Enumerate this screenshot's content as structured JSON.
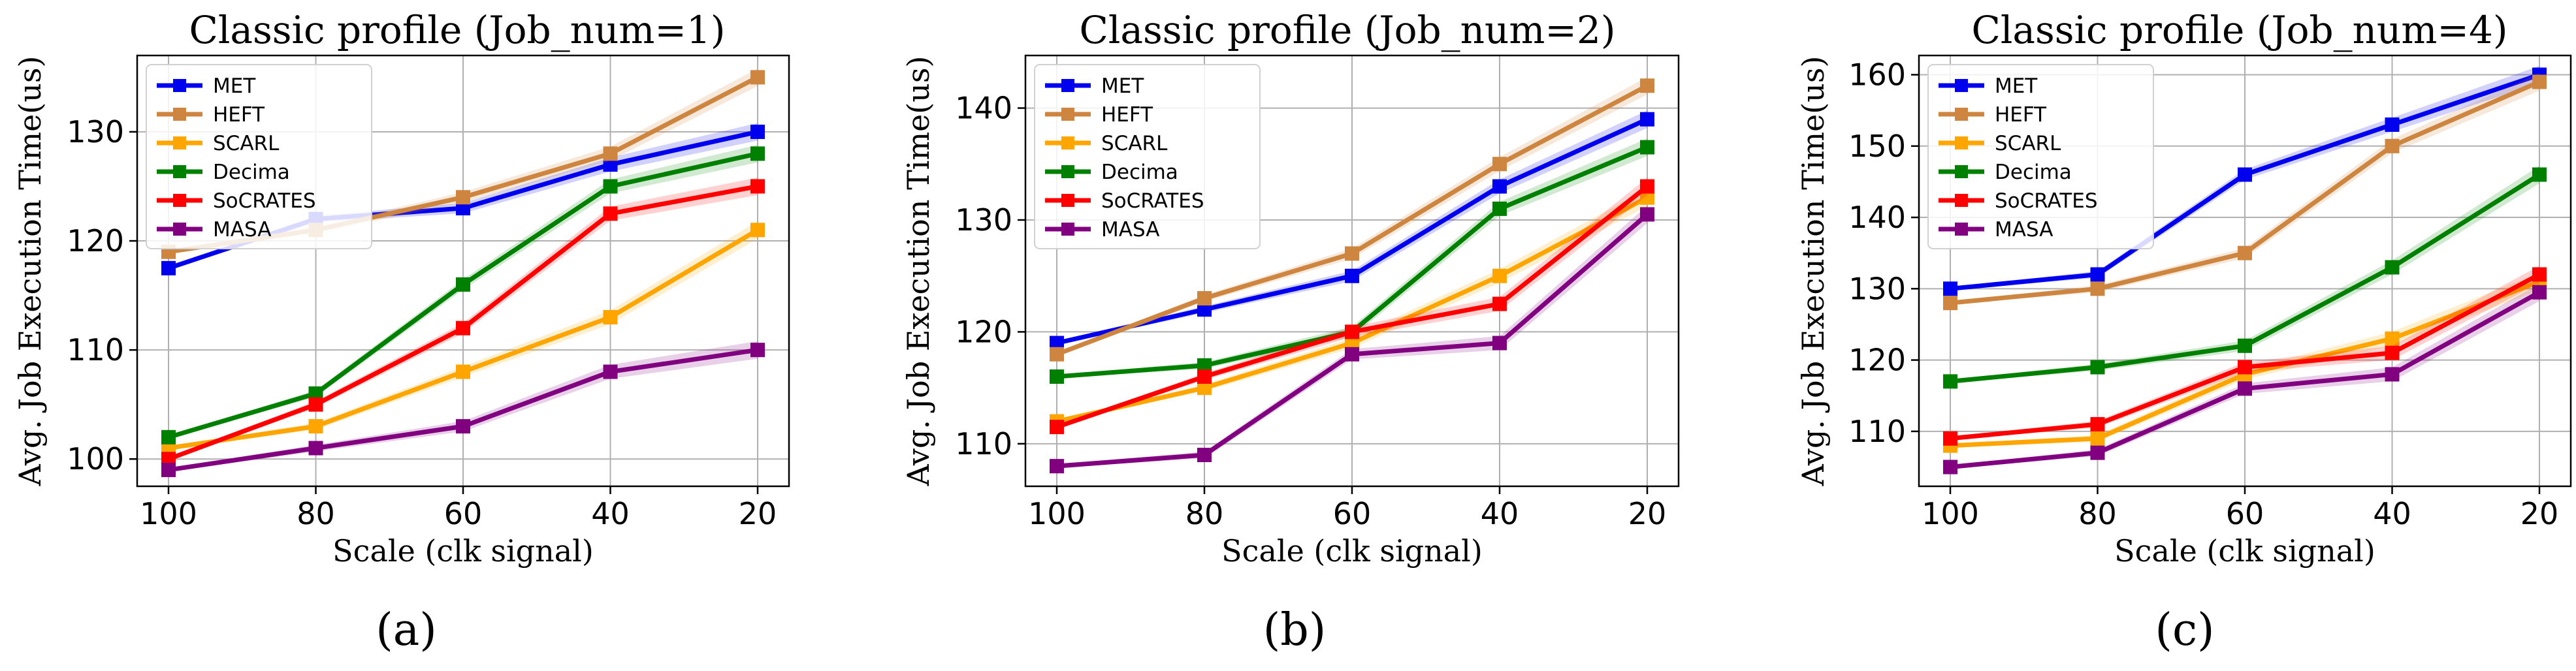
{
  "figure": {
    "panel_labels": [
      "(a)",
      "(b)",
      "(c)"
    ]
  },
  "chart_data": [
    {
      "type": "line",
      "title": "Classic profile (Job_num=1)",
      "xlabel": "Scale (clk signal)",
      "ylabel": "Avg. Job Execution Time(us)",
      "categories": [
        "100",
        "80",
        "60",
        "40",
        "20"
      ],
      "ylim": [
        97.5,
        137
      ],
      "yticks": [
        100,
        110,
        120,
        130
      ],
      "grid": true,
      "legend_position": "top-left",
      "series": [
        {
          "name": "MET",
          "color": "#0000ee",
          "values": [
            117.5,
            122,
            123,
            127,
            130
          ]
        },
        {
          "name": "HEFT",
          "color": "#cd853f",
          "values": [
            119,
            121,
            124,
            128,
            135
          ]
        },
        {
          "name": "SCARL",
          "color": "#ffa500",
          "values": [
            101,
            103,
            108,
            113,
            121
          ]
        },
        {
          "name": "Decima",
          "color": "#008000",
          "values": [
            102,
            106,
            116,
            125,
            128
          ]
        },
        {
          "name": "SoCRATES",
          "color": "#ff0000",
          "values": [
            100,
            105,
            112,
            122.5,
            125
          ]
        },
        {
          "name": "MASA",
          "color": "#800080",
          "values": [
            99,
            101,
            103,
            108,
            110
          ]
        }
      ]
    },
    {
      "type": "line",
      "title": "Classic profile (Job_num=2)",
      "xlabel": "Scale (clk signal)",
      "ylabel": "Avg. Job Execution Time(us)",
      "categories": [
        "100",
        "80",
        "60",
        "40",
        "20"
      ],
      "ylim": [
        106.2,
        144.7
      ],
      "yticks": [
        110,
        120,
        130,
        140
      ],
      "grid": true,
      "legend_position": "top-left",
      "series": [
        {
          "name": "MET",
          "color": "#0000ee",
          "values": [
            119,
            122,
            125,
            133,
            139
          ]
        },
        {
          "name": "HEFT",
          "color": "#cd853f",
          "values": [
            118,
            123,
            127,
            135,
            142
          ]
        },
        {
          "name": "SCARL",
          "color": "#ffa500",
          "values": [
            112,
            115,
            119,
            125,
            132
          ]
        },
        {
          "name": "Decima",
          "color": "#008000",
          "values": [
            116,
            117,
            120,
            131,
            136.5
          ]
        },
        {
          "name": "SoCRATES",
          "color": "#ff0000",
          "values": [
            111.5,
            116,
            120,
            122.5,
            133
          ]
        },
        {
          "name": "MASA",
          "color": "#800080",
          "values": [
            108,
            109,
            118,
            119,
            130.5
          ]
        }
      ]
    },
    {
      "type": "line",
      "title": "Classic profile (Job_num=4)",
      "xlabel": "Scale (clk signal)",
      "ylabel": "Avg. Job Execution Time(us)",
      "categories": [
        "100",
        "80",
        "60",
        "40",
        "20"
      ],
      "ylim": [
        102.3,
        162.7
      ],
      "yticks": [
        110,
        120,
        130,
        140,
        150,
        160
      ],
      "grid": true,
      "legend_position": "top-left",
      "series": [
        {
          "name": "MET",
          "color": "#0000ee",
          "values": [
            130,
            132,
            146,
            153,
            160
          ]
        },
        {
          "name": "HEFT",
          "color": "#cd853f",
          "values": [
            128,
            130,
            135,
            150,
            159
          ]
        },
        {
          "name": "SCARL",
          "color": "#ffa500",
          "values": [
            108,
            109,
            118,
            123,
            131
          ]
        },
        {
          "name": "Decima",
          "color": "#008000",
          "values": [
            117,
            119,
            122,
            133,
            146
          ]
        },
        {
          "name": "SoCRATES",
          "color": "#ff0000",
          "values": [
            109,
            111,
            119,
            121,
            132
          ]
        },
        {
          "name": "MASA",
          "color": "#800080",
          "values": [
            105,
            107,
            116,
            118,
            129.5
          ]
        }
      ]
    }
  ]
}
